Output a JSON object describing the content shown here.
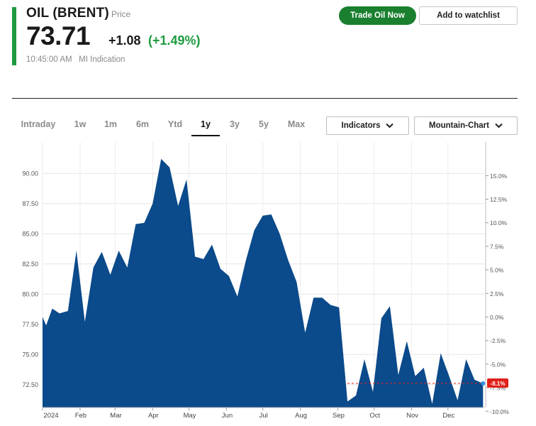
{
  "quote": {
    "name": "OIL (BRENT)",
    "price_label": "Price",
    "price": "73.71",
    "change": "+1.08",
    "change_pct": "(+1.49%)",
    "timestamp": "10:45:00 AM   MI Indication"
  },
  "actions": {
    "trade_label": "Trade Oil Now",
    "watchlist_label": "Add to watchlist"
  },
  "tabs": [
    {
      "label": "Intraday",
      "active": false
    },
    {
      "label": "1w",
      "active": false
    },
    {
      "label": "1m",
      "active": false
    },
    {
      "label": "6m",
      "active": false
    },
    {
      "label": "Ytd",
      "active": false
    },
    {
      "label": "1y",
      "active": true
    },
    {
      "label": "3y",
      "active": false
    },
    {
      "label": "5y",
      "active": false
    },
    {
      "label": "Max",
      "active": false
    }
  ],
  "controls": {
    "indicators_label": "Indicators",
    "chart_type_label": "Mountain-Chart"
  },
  "colors": {
    "accent": "#1e9b3f",
    "area_fill": "#0b4a8b",
    "negative_badge": "#e0201b"
  },
  "chart_data": {
    "type": "area",
    "title": "",
    "xlabel": "",
    "ylabel": "",
    "ylim": [
      70.6,
      92.6
    ],
    "y_ticks": [
      "90.00",
      "87.50",
      "85.00",
      "82.50",
      "80.00",
      "77.50",
      "75.00",
      "72.50"
    ],
    "y2_ticks": [
      "15.0%",
      "12.5%",
      "10.0%",
      "7.5%",
      "5.0%",
      "2.5%",
      "0.0%",
      "-2.5%",
      "-5.0%",
      "-7.5%",
      "-10.0%"
    ],
    "x_ticks": [
      "2024",
      "Feb",
      "Mar",
      "Apr",
      "May",
      "Jun",
      "Jul",
      "Aug",
      "Sep",
      "Oct",
      "Nov",
      "Dec"
    ],
    "current_pct_label": "-8.1%",
    "grid": true,
    "series": [
      {
        "points": [
          [
            "2024-01-01",
            78.1
          ],
          [
            "2024-01-04",
            77.4
          ],
          [
            "2024-01-09",
            78.8
          ],
          [
            "2024-01-15",
            78.4
          ],
          [
            "2024-01-22",
            78.6
          ],
          [
            "2024-01-29",
            83.6
          ],
          [
            "2024-02-05",
            77.7
          ],
          [
            "2024-02-12",
            82.2
          ],
          [
            "2024-02-19",
            83.5
          ],
          [
            "2024-02-26",
            81.6
          ],
          [
            "2024-03-04",
            83.6
          ],
          [
            "2024-03-11",
            82.2
          ],
          [
            "2024-03-18",
            85.8
          ],
          [
            "2024-03-25",
            85.9
          ],
          [
            "2024-04-01",
            87.5
          ],
          [
            "2024-04-08",
            91.2
          ],
          [
            "2024-04-15",
            90.5
          ],
          [
            "2024-04-22",
            87.3
          ],
          [
            "2024-04-29",
            89.5
          ],
          [
            "2024-05-06",
            83.1
          ],
          [
            "2024-05-13",
            82.9
          ],
          [
            "2024-05-20",
            84.1
          ],
          [
            "2024-05-27",
            82.1
          ],
          [
            "2024-06-03",
            81.5
          ],
          [
            "2024-06-10",
            79.8
          ],
          [
            "2024-06-17",
            82.8
          ],
          [
            "2024-06-24",
            85.3
          ],
          [
            "2024-07-01",
            86.5
          ],
          [
            "2024-07-08",
            86.6
          ],
          [
            "2024-07-15",
            85.0
          ],
          [
            "2024-07-22",
            82.8
          ],
          [
            "2024-07-29",
            81.0
          ],
          [
            "2024-08-05",
            76.8
          ],
          [
            "2024-08-12",
            79.7
          ],
          [
            "2024-08-19",
            79.7
          ],
          [
            "2024-08-26",
            79.1
          ],
          [
            "2024-09-02",
            78.9
          ],
          [
            "2024-09-09",
            71.1
          ],
          [
            "2024-09-16",
            71.6
          ],
          [
            "2024-09-23",
            74.6
          ],
          [
            "2024-09-30",
            71.9
          ],
          [
            "2024-10-07",
            78.0
          ],
          [
            "2024-10-14",
            79.0
          ],
          [
            "2024-10-21",
            73.3
          ],
          [
            "2024-10-28",
            76.1
          ],
          [
            "2024-11-04",
            73.2
          ],
          [
            "2024-11-11",
            73.9
          ],
          [
            "2024-11-18",
            70.9
          ],
          [
            "2024-11-25",
            75.1
          ],
          [
            "2024-12-02",
            73.2
          ],
          [
            "2024-12-09",
            71.2
          ],
          [
            "2024-12-16",
            74.6
          ],
          [
            "2024-12-23",
            72.9
          ],
          [
            "2024-12-30",
            72.6
          ]
        ]
      }
    ]
  }
}
